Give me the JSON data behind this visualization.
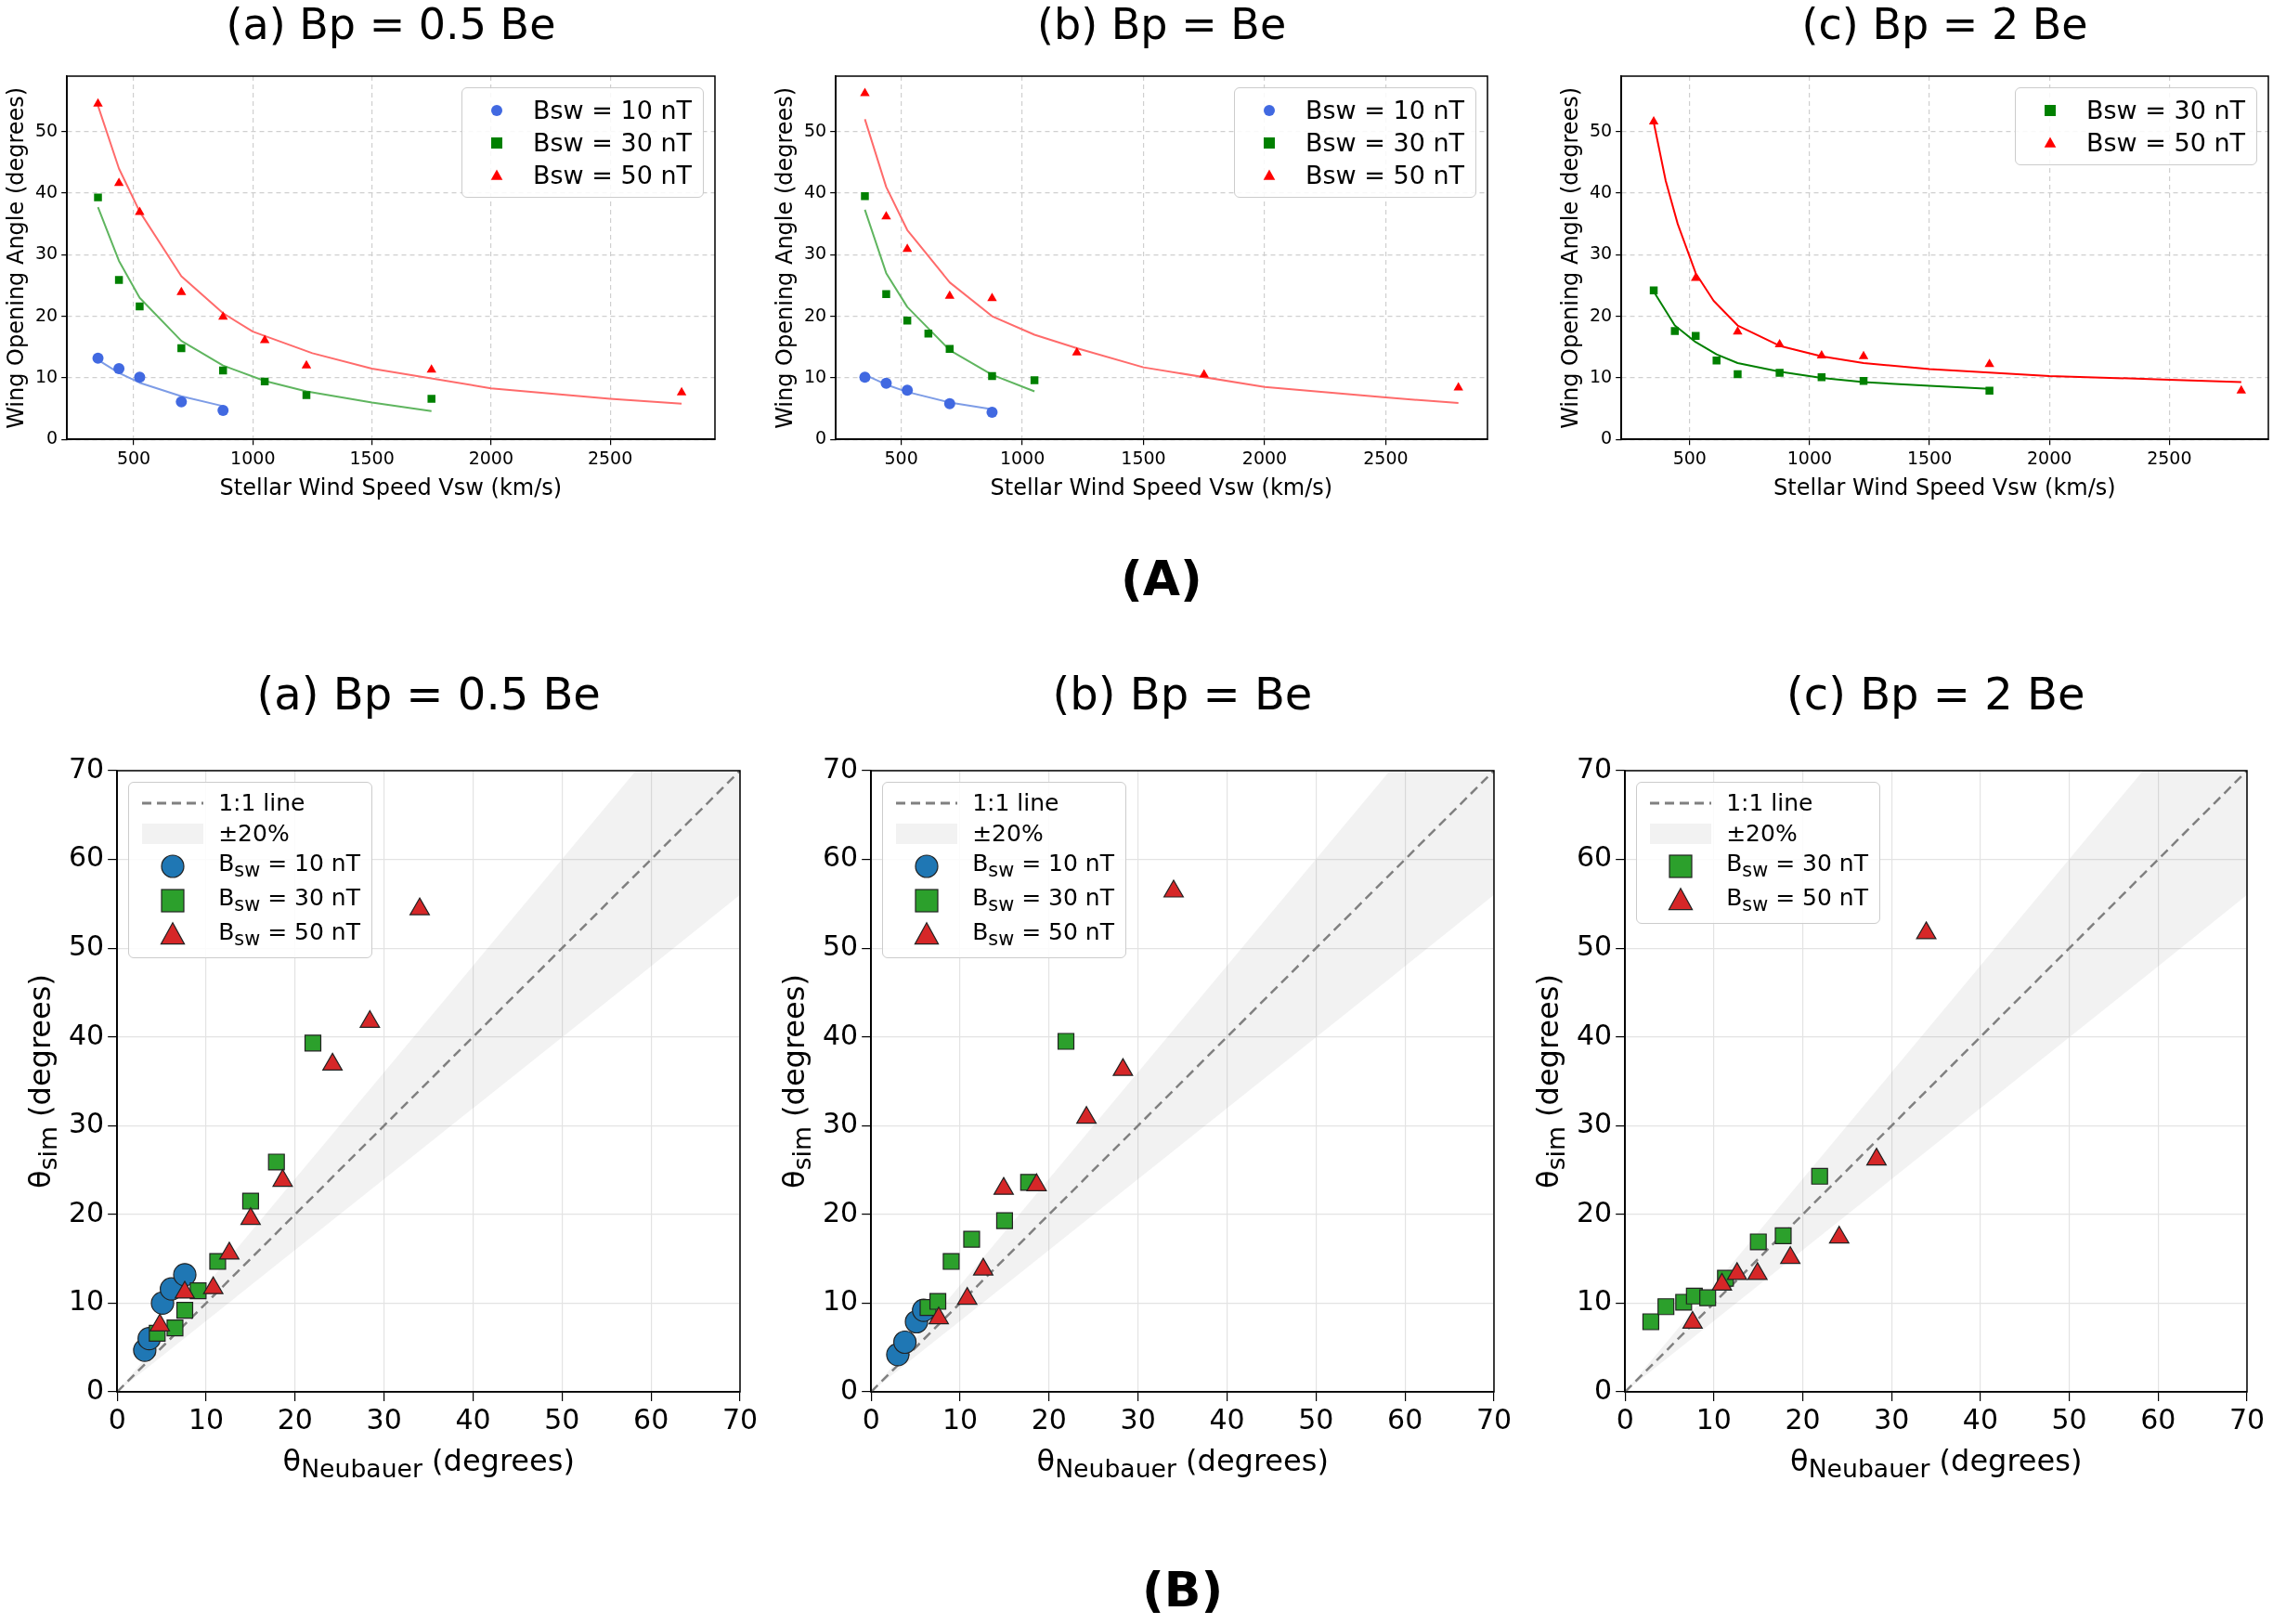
{
  "chart_data": [
    {
      "type": "scatter",
      "title": "(a) Bp = 0.5 Be",
      "xlabel": "Stellar Wind Speed Vsw (km/s)",
      "ylabel": "Wing Opening Angle (degrees)",
      "xlim": [
        220,
        2940
      ],
      "ylim": [
        0,
        59
      ],
      "xticks": [
        500,
        1000,
        1500,
        2000,
        2500
      ],
      "yticks": [
        0,
        10,
        20,
        30,
        40,
        50
      ],
      "grid": true,
      "legend": "top right",
      "series": [
        {
          "type": "line",
          "marker": "none",
          "color": "#7d9ce6",
          "x": [
            350,
            438,
            525,
            700,
            875
          ],
          "values": [
            12.9,
            10.8,
            9.2,
            7,
            5.4
          ]
        },
        {
          "type": "line",
          "marker": "none",
          "color": "#5fb55f",
          "x": [
            350,
            438,
            525,
            700,
            875,
            1050,
            1225,
            1500,
            1750
          ],
          "values": [
            37.7,
            29,
            23,
            16,
            12,
            9.5,
            7.8,
            6,
            4.6
          ]
        },
        {
          "type": "line",
          "marker": "none",
          "color": "#ff6b6b",
          "x": [
            350,
            438,
            525,
            700,
            875,
            1000,
            1250,
            1500,
            2000,
            2500,
            2800
          ],
          "values": [
            54.2,
            44,
            37,
            26.5,
            20.5,
            17.5,
            14,
            11.5,
            8.3,
            6.6,
            5.8
          ]
        },
        {
          "name": "Bsw = 10 nT",
          "type": "scatter",
          "marker": "circle",
          "color": "#4169e1",
          "x": [
            350,
            438,
            525,
            700,
            875
          ],
          "values": [
            13.2,
            11.5,
            10.1,
            6.1,
            4.7
          ]
        },
        {
          "name": "Bsw = 30 nT",
          "type": "scatter",
          "marker": "square",
          "color": "#008000",
          "x": [
            350,
            438,
            525,
            700,
            875,
            1050,
            1225,
            1750
          ],
          "values": [
            39.3,
            25.9,
            21.6,
            14.8,
            11.2,
            9.4,
            7.2,
            6.6
          ]
        },
        {
          "name": "Bsw = 50 nT",
          "type": "scatter",
          "marker": "triangle",
          "color": "#ff0000",
          "x": [
            350,
            438,
            525,
            700,
            875,
            1050,
            1225,
            1750,
            2800
          ],
          "values": [
            54.5,
            41.6,
            36.9,
            23.9,
            19.9,
            16.1,
            12,
            11.3,
            7.6
          ]
        }
      ]
    },
    {
      "type": "scatter",
      "title": "(b) Bp = Be",
      "xlabel": "Stellar Wind Speed Vsw (km/s)",
      "ylabel": "Wing Opening Angle (degrees)",
      "xlim": [
        230,
        2920
      ],
      "ylim": [
        0,
        59
      ],
      "xticks": [
        500,
        1000,
        1500,
        2000,
        2500
      ],
      "yticks": [
        0,
        10,
        20,
        30,
        40,
        50
      ],
      "grid": true,
      "legend": "top right",
      "annotations": [
        "(A)"
      ],
      "series": [
        {
          "type": "line",
          "marker": "none",
          "color": "#7d9ce6",
          "x": [
            350,
            438,
            525,
            700,
            875
          ],
          "values": [
            10.5,
            8.9,
            7.7,
            6,
            4.9
          ]
        },
        {
          "type": "line",
          "marker": "none",
          "color": "#5fb55f",
          "x": [
            350,
            438,
            525,
            700,
            875,
            1050
          ],
          "values": [
            37.3,
            27,
            21.5,
            14.5,
            10.5,
            7.8
          ]
        },
        {
          "type": "line",
          "marker": "none",
          "color": "#ff6b6b",
          "x": [
            350,
            438,
            525,
            700,
            875,
            1050,
            1225,
            1500,
            2000,
            2500,
            2800
          ],
          "values": [
            52,
            41,
            34,
            25.5,
            20,
            17,
            14.8,
            11.7,
            8.5,
            6.8,
            5.9
          ]
        },
        {
          "name": "Bsw = 10 nT",
          "type": "scatter",
          "marker": "circle",
          "color": "#4169e1",
          "x": [
            350,
            438,
            525,
            700,
            875
          ],
          "values": [
            10.1,
            9.1,
            8,
            5.8,
            4.4
          ]
        },
        {
          "name": "Bsw = 30 nT",
          "type": "scatter",
          "marker": "square",
          "color": "#008000",
          "x": [
            350,
            438,
            525,
            612,
            700,
            875,
            1050
          ],
          "values": [
            39.5,
            23.6,
            19.3,
            17.2,
            14.7,
            10.3,
            9.6
          ]
        },
        {
          "name": "Bsw = 50 nT",
          "type": "scatter",
          "marker": "triangle",
          "color": "#ff0000",
          "x": [
            350,
            438,
            525,
            700,
            875,
            1225,
            1750,
            2800
          ],
          "values": [
            56.2,
            36.2,
            30.9,
            23.3,
            22.9,
            14.1,
            10.5,
            8.4
          ]
        }
      ]
    },
    {
      "type": "scatter",
      "title": "(c) Bp = 2 Be",
      "xlabel": "Stellar Wind Speed Vsw (km/s)",
      "ylabel": "Wing Opening Angle (degrees)",
      "xlim": [
        215,
        2913
      ],
      "ylim": [
        0,
        59
      ],
      "xticks": [
        500,
        1000,
        1500,
        2000,
        2500
      ],
      "yticks": [
        0,
        10,
        20,
        30,
        40,
        50
      ],
      "grid": true,
      "legend": "top right",
      "series": [
        {
          "type": "line",
          "marker": "none",
          "color": "#008000",
          "x": [
            350,
            438,
            525,
            612,
            700,
            875,
            1050,
            1225,
            1500,
            1750
          ],
          "values": [
            24,
            18.5,
            15.8,
            13.8,
            12.4,
            11,
            10,
            9.3,
            8.7,
            8.2
          ]
        },
        {
          "type": "line",
          "marker": "none",
          "color": "#ff0000",
          "x": [
            350,
            400,
            450,
            525,
            600,
            700,
            875,
            1050,
            1225,
            1500,
            2000,
            2500,
            2800
          ],
          "values": [
            51.5,
            42,
            35,
            27,
            22.5,
            18.5,
            15.2,
            13.5,
            12.4,
            11.4,
            10.3,
            9.7,
            9.3
          ]
        },
        {
          "name": "Bsw = 30 nT",
          "type": "scatter",
          "marker": "square",
          "color": "#008000",
          "x": [
            350,
            438,
            525,
            612,
            700,
            875,
            1050,
            1225,
            1750
          ],
          "values": [
            24.2,
            17.6,
            16.8,
            12.8,
            10.6,
            10.8,
            10.1,
            9.5,
            7.9
          ]
        },
        {
          "name": "Bsw = 50 nT",
          "type": "scatter",
          "marker": "triangle",
          "color": "#ff0000",
          "x": [
            350,
            525,
            700,
            875,
            1050,
            1225,
            1750,
            2800
          ],
          "values": [
            51.6,
            26.2,
            17.5,
            15.4,
            13.6,
            13.5,
            12.2,
            7.9
          ]
        }
      ]
    },
    {
      "type": "scatter",
      "title": "(a) Bp = 0.5 Be",
      "xlabel": "θ$_{Neubauer}$ (degrees)",
      "ylabel": "θ$_{sim}$ (degrees)",
      "xlim": [
        0,
        70
      ],
      "ylim": [
        0,
        70
      ],
      "xticks": [
        0,
        10,
        20,
        30,
        40,
        50,
        60,
        70
      ],
      "yticks": [
        0,
        10,
        20,
        30,
        40,
        50,
        60,
        70
      ],
      "grid": true,
      "legend": "top left",
      "series": [
        {
          "name": "1:1 line",
          "type": "line",
          "marker": "none",
          "line_style": "dashed",
          "color": "#808080",
          "x": [
            0,
            58.3,
            70
          ],
          "values": [
            0,
            58.3,
            70
          ],
          "lower": [
            0,
            46.6,
            56
          ],
          "upper": [
            0,
            70,
            70
          ]
        },
        {
          "name": "±20%",
          "type": "area",
          "color": "#f2f2f2"
        },
        {
          "name": "B$_{sw}$ = 10 nT",
          "type": "scatter",
          "marker": "circle",
          "color": "#1f77b4",
          "x": [
            3.1,
            3.6,
            5.1,
            6.1,
            7.6
          ],
          "values": [
            4.7,
            6,
            10,
            11.6,
            13.2
          ]
        },
        {
          "name": "B$_{sw}$ = 30 nT",
          "type": "scatter",
          "marker": "square",
          "color": "#2ca02c",
          "x": [
            4.5,
            6.5,
            7.6,
            9.1,
            11.3,
            15,
            17.9,
            22
          ],
          "values": [
            6.6,
            7.2,
            9.2,
            11.4,
            14.7,
            21.5,
            25.9,
            39.3
          ]
        },
        {
          "name": "B$_{sw}$ = 50 nT",
          "type": "scatter",
          "marker": "triangle",
          "color": "#d62728",
          "x": [
            4.8,
            7.6,
            10.8,
            12.6,
            15,
            18.6,
            24.2,
            28.4,
            34
          ],
          "values": [
            7.5,
            11.2,
            11.7,
            15.6,
            19.5,
            23.8,
            36.9,
            41.7,
            54.4
          ]
        }
      ]
    },
    {
      "type": "scatter",
      "title": "(b) Bp = Be",
      "xlabel": "θ$_{Neubauer}$ (degrees)",
      "ylabel": "θ$_{sim}$ (degrees)",
      "xlim": [
        0,
        70
      ],
      "ylim": [
        0,
        70
      ],
      "xticks": [
        0,
        10,
        20,
        30,
        40,
        50,
        60,
        70
      ],
      "yticks": [
        0,
        10,
        20,
        30,
        40,
        50,
        60,
        70
      ],
      "grid": true,
      "legend": "top left",
      "annotations": [
        "(B)"
      ],
      "series": [
        {
          "name": "1:1 line",
          "type": "line",
          "marker": "none",
          "line_style": "dashed",
          "color": "#808080",
          "x": [
            0,
            58.3,
            70
          ],
          "values": [
            0,
            58.3,
            70
          ],
          "lower": [
            0,
            46.6,
            56
          ],
          "upper": [
            0,
            70,
            70
          ]
        },
        {
          "name": "±20%",
          "type": "area",
          "color": "#f2f2f2"
        },
        {
          "name": "B$_{sw}$ = 10 nT",
          "type": "scatter",
          "marker": "circle",
          "color": "#1f77b4",
          "x": [
            3,
            3.8,
            5.1,
            5.9
          ],
          "values": [
            4.2,
            5.6,
            7.9,
            9.2
          ]
        },
        {
          "name": "B$_{sw}$ = 30 nT",
          "type": "scatter",
          "marker": "square",
          "color": "#2ca02c",
          "x": [
            6.4,
            7.5,
            9,
            11.3,
            15,
            17.7,
            21.9
          ],
          "values": [
            9.5,
            10.2,
            14.7,
            17.2,
            19.3,
            23.6,
            39.5
          ]
        },
        {
          "name": "B$_{sw}$ = 50 nT",
          "type": "scatter",
          "marker": "triangle",
          "color": "#d62728",
          "x": [
            7.6,
            10.8,
            12.6,
            14.9,
            18.6,
            24.2,
            28.3,
            34
          ],
          "values": [
            8.3,
            10.5,
            13.8,
            22.9,
            23.3,
            30.9,
            36.3,
            56.4
          ]
        }
      ]
    },
    {
      "type": "scatter",
      "title": "(c) Bp = 2 Be",
      "xlabel": "θ$_{Neubauer}$ (degrees)",
      "ylabel": "θ$_{sim}$ (degrees)",
      "xlim": [
        0,
        70
      ],
      "ylim": [
        0,
        70
      ],
      "xticks": [
        0,
        10,
        20,
        30,
        40,
        50,
        60,
        70
      ],
      "yticks": [
        0,
        10,
        20,
        30,
        40,
        50,
        60,
        70
      ],
      "grid": true,
      "legend": "top left",
      "series": [
        {
          "name": "1:1 line",
          "type": "line",
          "marker": "none",
          "line_style": "dashed",
          "color": "#808080",
          "x": [
            0,
            58.3,
            70
          ],
          "values": [
            0,
            58.3,
            70
          ],
          "lower": [
            0,
            46.6,
            56
          ],
          "upper": [
            0,
            70,
            70
          ]
        },
        {
          "name": "±20%",
          "type": "area",
          "color": "#f2f2f2"
        },
        {
          "name": "B$_{sw}$ = 30 nT",
          "type": "scatter",
          "marker": "square",
          "color": "#2ca02c",
          "x": [
            2.9,
            4.6,
            6.6,
            7.8,
            9.3,
            11.3,
            15,
            17.8,
            21.9
          ],
          "values": [
            7.9,
            9.6,
            10.1,
            10.8,
            10.6,
            12.8,
            16.9,
            17.6,
            24.3
          ]
        },
        {
          "name": "B$_{sw}$ = 50 nT",
          "type": "scatter",
          "marker": "triangle",
          "color": "#d62728",
          "x": [
            7.6,
            10.9,
            12.6,
            14.9,
            18.6,
            24.1,
            28.3,
            33.9
          ],
          "values": [
            7.8,
            12.1,
            13.3,
            13.3,
            15.1,
            17.4,
            26.2,
            51.7
          ]
        }
      ]
    }
  ]
}
